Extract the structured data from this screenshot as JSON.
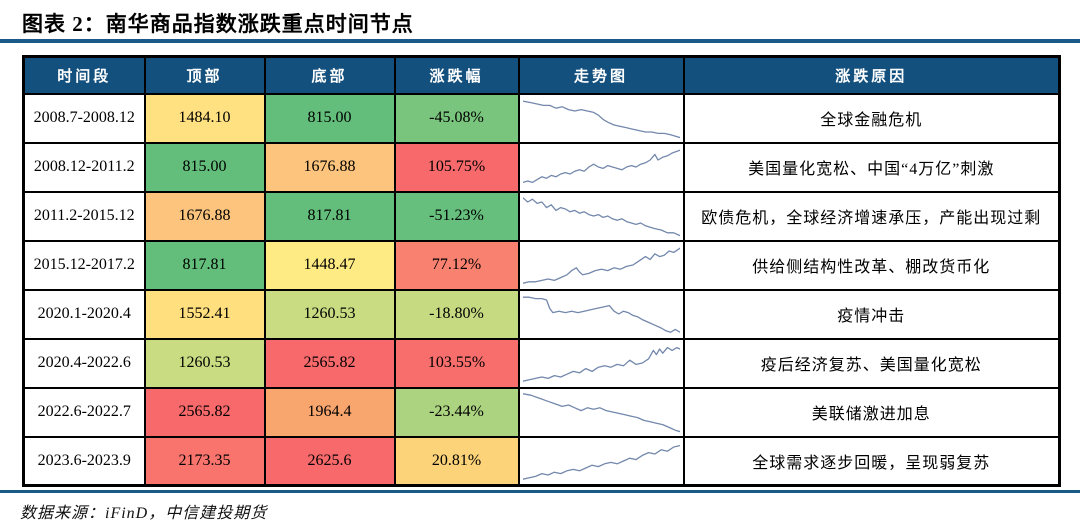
{
  "title": "图表 2：南华商品指数涨跌重点时间节点",
  "source": "数据来源：iFinD，中信建投期货",
  "colors": {
    "header_bg": "#14507D",
    "rule": "#1A5A88",
    "border": "#000000",
    "sparkline": "#7388AC"
  },
  "table": {
    "headers": [
      "时间段",
      "顶部",
      "底部",
      "涨跌幅",
      "走势图",
      "涨跌原因"
    ],
    "rows": [
      {
        "period": "2008.7-2008.12",
        "top": "1484.10",
        "top_bg": "#FFE182",
        "bottom": "815.00",
        "bottom_bg": "#63BE7B",
        "change": "-45.08%",
        "change_bg": "#79C57E",
        "trend": "down",
        "spark": [
          [
            0,
            3
          ],
          [
            5,
            4
          ],
          [
            9,
            5
          ],
          [
            13,
            6
          ],
          [
            17,
            6
          ],
          [
            21,
            8
          ],
          [
            25,
            7
          ],
          [
            29,
            9
          ],
          [
            33,
            10
          ],
          [
            37,
            9
          ],
          [
            41,
            10
          ],
          [
            45,
            11
          ],
          [
            48,
            13
          ],
          [
            51,
            16
          ],
          [
            54,
            18
          ],
          [
            58,
            20
          ],
          [
            62,
            21
          ],
          [
            66,
            22
          ],
          [
            70,
            23
          ],
          [
            74,
            24
          ],
          [
            78,
            25
          ],
          [
            82,
            25
          ],
          [
            86,
            26
          ],
          [
            90,
            26
          ],
          [
            94,
            27
          ],
          [
            100,
            29
          ]
        ],
        "reason": "全球金融危机"
      },
      {
        "period": "2008.12-2011.2",
        "top": "815.00",
        "top_bg": "#63BE7B",
        "bottom": "1676.88",
        "bottom_bg": "#FCC47C",
        "change": "105.75%",
        "change_bg": "#F8696B",
        "trend": "up",
        "spark": [
          [
            0,
            26
          ],
          [
            3,
            25
          ],
          [
            6,
            26
          ],
          [
            9,
            24
          ],
          [
            12,
            22
          ],
          [
            15,
            23
          ],
          [
            18,
            21
          ],
          [
            21,
            22
          ],
          [
            24,
            20
          ],
          [
            27,
            19
          ],
          [
            30,
            20
          ],
          [
            33,
            18
          ],
          [
            36,
            17
          ],
          [
            39,
            18
          ],
          [
            42,
            15
          ],
          [
            45,
            13
          ],
          [
            48,
            15
          ],
          [
            51,
            16
          ],
          [
            54,
            14
          ],
          [
            57,
            15
          ],
          [
            60,
            16
          ],
          [
            63,
            17
          ],
          [
            66,
            15
          ],
          [
            69,
            14
          ],
          [
            72,
            15
          ],
          [
            75,
            13
          ],
          [
            78,
            12
          ],
          [
            81,
            10
          ],
          [
            84,
            6
          ],
          [
            86,
            10
          ],
          [
            89,
            8
          ],
          [
            92,
            7
          ],
          [
            95,
            5
          ],
          [
            100,
            3
          ]
        ],
        "reason": "美国量化宽松、中国“4万亿”刺激"
      },
      {
        "period": "2011.2-2015.12",
        "top": "1676.88",
        "top_bg": "#FCC47C",
        "bottom": "817.81",
        "bottom_bg": "#63BE7B",
        "change": "-51.23%",
        "change_bg": "#66BF7C",
        "trend": "down",
        "spark": [
          [
            0,
            2
          ],
          [
            3,
            5
          ],
          [
            6,
            3
          ],
          [
            9,
            6
          ],
          [
            12,
            5
          ],
          [
            15,
            9
          ],
          [
            18,
            7
          ],
          [
            21,
            11
          ],
          [
            24,
            9
          ],
          [
            27,
            10
          ],
          [
            30,
            12
          ],
          [
            33,
            11
          ],
          [
            36,
            13
          ],
          [
            39,
            12
          ],
          [
            42,
            14
          ],
          [
            45,
            15
          ],
          [
            48,
            14
          ],
          [
            51,
            16
          ],
          [
            54,
            15
          ],
          [
            57,
            17
          ],
          [
            60,
            18
          ],
          [
            63,
            17
          ],
          [
            66,
            19
          ],
          [
            69,
            20
          ],
          [
            72,
            21
          ],
          [
            75,
            20
          ],
          [
            78,
            22
          ],
          [
            81,
            23
          ],
          [
            84,
            24
          ],
          [
            88,
            25
          ],
          [
            92,
            27
          ],
          [
            96,
            27
          ],
          [
            100,
            29
          ]
        ],
        "reason": "欧债危机，全球经济增速承压，产能出现过剩"
      },
      {
        "period": "2015.12-2017.2",
        "top": "817.81",
        "top_bg": "#63BE7B",
        "bottom": "1448.47",
        "bottom_bg": "#FFEB84",
        "change": "77.12%",
        "change_bg": "#F8816F",
        "trend": "up",
        "spark": [
          [
            0,
            28
          ],
          [
            4,
            27
          ],
          [
            8,
            27
          ],
          [
            12,
            26
          ],
          [
            16,
            25
          ],
          [
            20,
            26
          ],
          [
            24,
            24
          ],
          [
            28,
            22
          ],
          [
            31,
            19
          ],
          [
            34,
            17
          ],
          [
            36,
            20
          ],
          [
            38,
            22
          ],
          [
            42,
            21
          ],
          [
            46,
            19
          ],
          [
            50,
            18
          ],
          [
            54,
            19
          ],
          [
            58,
            17
          ],
          [
            62,
            18
          ],
          [
            66,
            16
          ],
          [
            70,
            15
          ],
          [
            74,
            12
          ],
          [
            78,
            9
          ],
          [
            81,
            11
          ],
          [
            84,
            7
          ],
          [
            87,
            9
          ],
          [
            90,
            8
          ],
          [
            93,
            5
          ],
          [
            96,
            6
          ],
          [
            100,
            3
          ]
        ],
        "reason": "供给侧结构性改革、棚改货币化"
      },
      {
        "period": "2020.1-2020.4",
        "top": "1552.41",
        "top_bg": "#FFDF7E",
        "bottom": "1260.53",
        "bottom_bg": "#C9DC81",
        "change": "-18.80%",
        "change_bg": "#C6DB81",
        "trend": "down",
        "spark": [
          [
            0,
            3
          ],
          [
            4,
            3
          ],
          [
            8,
            4
          ],
          [
            12,
            4
          ],
          [
            15,
            5
          ],
          [
            17,
            11
          ],
          [
            19,
            14
          ],
          [
            23,
            13
          ],
          [
            27,
            14
          ],
          [
            31,
            13
          ],
          [
            35,
            14
          ],
          [
            39,
            13
          ],
          [
            43,
            12
          ],
          [
            47,
            11
          ],
          [
            51,
            10
          ],
          [
            55,
            9
          ],
          [
            58,
            13
          ],
          [
            61,
            15
          ],
          [
            64,
            13
          ],
          [
            67,
            14
          ],
          [
            70,
            16
          ],
          [
            73,
            17
          ],
          [
            76,
            19
          ],
          [
            80,
            21
          ],
          [
            84,
            23
          ],
          [
            88,
            25
          ],
          [
            91,
            27
          ],
          [
            94,
            28
          ],
          [
            97,
            26
          ],
          [
            100,
            28
          ]
        ],
        "reason": "疫情冲击"
      },
      {
        "period": "2020.4-2022.6",
        "top": "1260.53",
        "top_bg": "#C9DC81",
        "bottom": "2565.82",
        "bottom_bg": "#F8696B",
        "change": "103.55%",
        "change_bg": "#F86E6C",
        "trend": "up",
        "spark": [
          [
            0,
            28
          ],
          [
            4,
            27
          ],
          [
            8,
            26
          ],
          [
            12,
            25
          ],
          [
            16,
            26
          ],
          [
            20,
            24
          ],
          [
            24,
            25
          ],
          [
            28,
            23
          ],
          [
            32,
            21
          ],
          [
            36,
            22
          ],
          [
            40,
            19
          ],
          [
            44,
            21
          ],
          [
            48,
            18
          ],
          [
            52,
            17
          ],
          [
            56,
            18
          ],
          [
            60,
            16
          ],
          [
            64,
            17
          ],
          [
            68,
            13
          ],
          [
            72,
            16
          ],
          [
            76,
            15
          ],
          [
            80,
            12
          ],
          [
            83,
            6
          ],
          [
            85,
            9
          ],
          [
            87,
            5
          ],
          [
            89,
            8
          ],
          [
            92,
            4
          ],
          [
            95,
            6
          ],
          [
            98,
            4
          ],
          [
            100,
            5
          ]
        ],
        "reason": "疫后经济复苏、美国量化宽松"
      },
      {
        "period": "2022.6-2022.7",
        "top": "2565.82",
        "top_bg": "#F8696B",
        "bottom": "1964.4",
        "bottom_bg": "#F9A56E",
        "change": "-23.44%",
        "change_bg": "#ACD380",
        "trend": "down",
        "spark": [
          [
            0,
            2
          ],
          [
            5,
            3
          ],
          [
            10,
            5
          ],
          [
            15,
            7
          ],
          [
            20,
            9
          ],
          [
            25,
            11
          ],
          [
            29,
            10
          ],
          [
            33,
            12
          ],
          [
            37,
            14
          ],
          [
            41,
            12
          ],
          [
            45,
            13
          ],
          [
            49,
            12
          ],
          [
            53,
            14
          ],
          [
            57,
            15
          ],
          [
            61,
            16
          ],
          [
            65,
            17
          ],
          [
            69,
            18
          ],
          [
            73,
            19
          ],
          [
            77,
            21
          ],
          [
            81,
            22
          ],
          [
            85,
            23
          ],
          [
            89,
            24
          ],
          [
            93,
            26
          ],
          [
            97,
            28
          ],
          [
            100,
            29
          ]
        ],
        "reason": "美联储激进加息"
      },
      {
        "period": "2023.6-2023.9",
        "top": "2173.35",
        "top_bg": "#F8746D",
        "bottom": "2625.6",
        "bottom_bg": "#F8696B",
        "change": "20.81%",
        "change_bg": "#FCD379",
        "trend": "up",
        "spark": [
          [
            0,
            28
          ],
          [
            4,
            27
          ],
          [
            8,
            26
          ],
          [
            12,
            24
          ],
          [
            16,
            25
          ],
          [
            20,
            23
          ],
          [
            24,
            24
          ],
          [
            28,
            22
          ],
          [
            32,
            21
          ],
          [
            36,
            22
          ],
          [
            40,
            20
          ],
          [
            44,
            18
          ],
          [
            48,
            19
          ],
          [
            52,
            17
          ],
          [
            56,
            16
          ],
          [
            60,
            17
          ],
          [
            64,
            15
          ],
          [
            68,
            13
          ],
          [
            72,
            14
          ],
          [
            76,
            11
          ],
          [
            80,
            9
          ],
          [
            84,
            10
          ],
          [
            88,
            7
          ],
          [
            92,
            8
          ],
          [
            96,
            5
          ],
          [
            100,
            4
          ]
        ],
        "reason": "全球需求逐步回暖，呈现弱复苏"
      }
    ]
  }
}
